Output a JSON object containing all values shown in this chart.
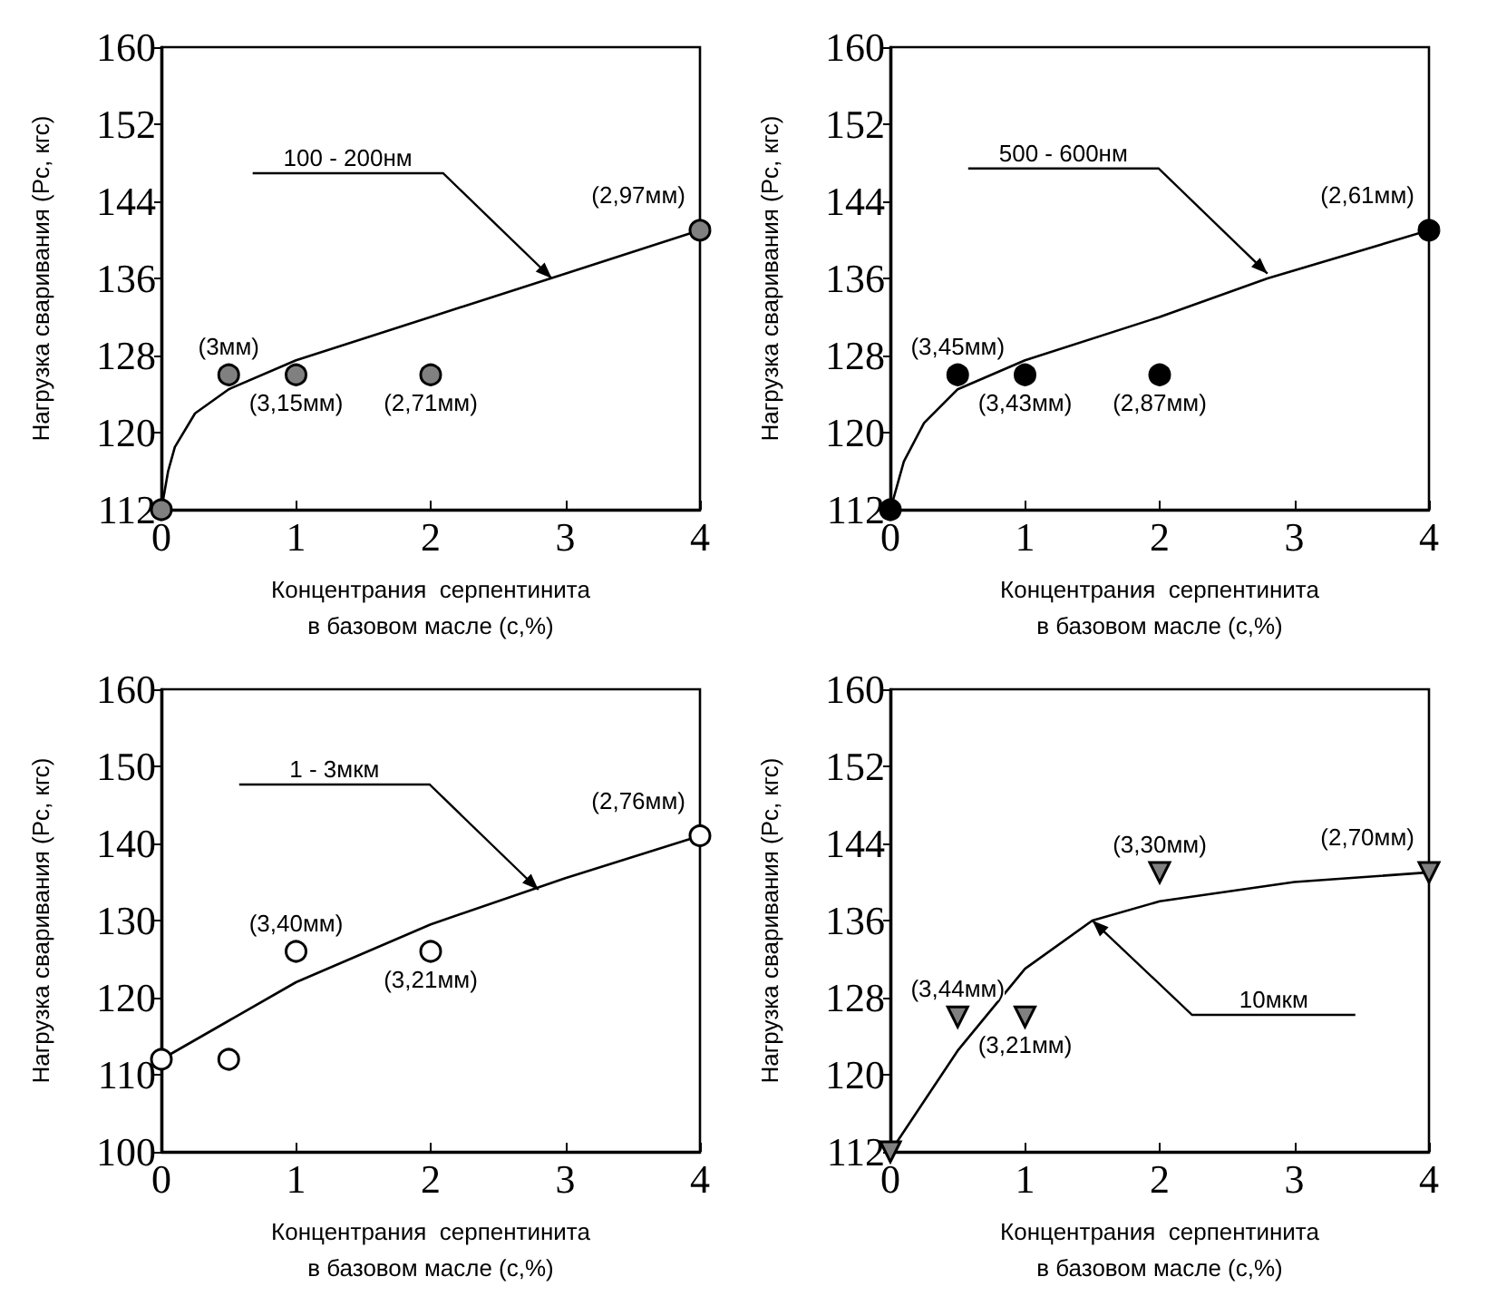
{
  "chart_data": [
    {
      "type": "scatter",
      "xlabel": "Концентрания  серпентинита\nв базовом масле (с,%)",
      "ylabel": "Нагрузка сваривания (Рс, кгс)",
      "xlim": [
        0,
        4
      ],
      "xticks": [
        0,
        1,
        2,
        3,
        4
      ],
      "ylim": [
        112,
        160
      ],
      "yticks": [
        112,
        120,
        128,
        136,
        144,
        152,
        160
      ],
      "series": [
        {
          "marker": "circle",
          "color": "#808080",
          "x": [
            0,
            0.5,
            1,
            2,
            4
          ],
          "values": [
            112,
            126,
            126,
            126,
            141
          ]
        },
        {
          "type": "line",
          "marker": "none",
          "line_style": "solid",
          "color": "#000000",
          "x": [
            0,
            0.05,
            0.1,
            0.25,
            0.5,
            1,
            2,
            3,
            4
          ],
          "values": [
            112,
            116,
            118.5,
            122,
            124.5,
            127.5,
            132,
            136.5,
            141
          ]
        }
      ],
      "annotations": [
        {
          "text": "(3мм)",
          "x": 0.5,
          "y": 126
        },
        {
          "text": "(3,15мм)",
          "x": 1,
          "y": 126
        },
        {
          "text": "(2,71мм)",
          "x": 2,
          "y": 126
        },
        {
          "text": "(2,97мм)",
          "x": 4,
          "y": 141
        },
        {
          "text": "100 - 200нм",
          "x": 2.9,
          "y": 136
        }
      ]
    },
    {
      "type": "scatter",
      "xlabel": "Концентрания  серпентинита\nв базовом масле (с,%)",
      "ylabel": "Нагрузка сваривания (Рс, кгс)",
      "xlim": [
        0,
        4
      ],
      "xticks": [
        0,
        1,
        2,
        3,
        4
      ],
      "ylim": [
        112,
        160
      ],
      "yticks": [
        112,
        120,
        128,
        136,
        144,
        152,
        160
      ],
      "series": [
        {
          "marker": "circle",
          "color": "#000000",
          "x": [
            0,
            0.5,
            1,
            2,
            4
          ],
          "values": [
            112,
            126,
            126,
            126,
            141
          ]
        },
        {
          "type": "line",
          "marker": "none",
          "line_style": "solid",
          "color": "#000000",
          "x": [
            0,
            0.1,
            0.25,
            0.5,
            1,
            2,
            2.8,
            4
          ],
          "values": [
            112,
            117,
            121,
            124.5,
            127.5,
            132,
            136,
            141
          ]
        }
      ],
      "annotations": [
        {
          "text": "(3,45мм)",
          "x": 0.5,
          "y": 126
        },
        {
          "text": "(3,43мм)",
          "x": 1,
          "y": 126
        },
        {
          "text": "(2,87мм)",
          "x": 2,
          "y": 126
        },
        {
          "text": "(2,61мм)",
          "x": 4,
          "y": 141
        },
        {
          "text": "500 - 600нм",
          "x": 2.8,
          "y": 136.5
        }
      ]
    },
    {
      "type": "scatter",
      "xlabel": "Концентрания  серпентинита\nв базовом масле (с,%)",
      "ylabel": "Нагрузка сваривания (Рс, кгс)",
      "xlim": [
        0,
        4
      ],
      "xticks": [
        0,
        1,
        2,
        3,
        4
      ],
      "ylim": [
        100,
        160
      ],
      "yticks": [
        100,
        110,
        120,
        130,
        140,
        150,
        160
      ],
      "series": [
        {
          "marker": "circle",
          "color": "#ffffff",
          "x": [
            0,
            0.5,
            1,
            2,
            4
          ],
          "values": [
            112,
            112,
            126,
            126,
            141
          ]
        },
        {
          "type": "line",
          "marker": "none",
          "line_style": "solid",
          "color": "#000000",
          "x": [
            0,
            0.5,
            1,
            2,
            3,
            4
          ],
          "values": [
            112,
            117,
            122,
            129.5,
            135.5,
            141
          ]
        }
      ],
      "annotations": [
        {
          "text": "(3,40мм)",
          "x": 1,
          "y": 126
        },
        {
          "text": "(3,21мм)",
          "x": 2,
          "y": 126
        },
        {
          "text": "(2,76мм)",
          "x": 4,
          "y": 141
        },
        {
          "text": "1 - 3мкм",
          "x": 2.8,
          "y": 134
        }
      ]
    },
    {
      "type": "scatter",
      "xlabel": "Концентрания  серпентинита\nв базовом масле (с,%)",
      "ylabel": "Нагрузка сваривания (Рс, кгс)",
      "xlim": [
        0,
        4
      ],
      "xticks": [
        0,
        1,
        2,
        3,
        4
      ],
      "ylim": [
        112,
        160
      ],
      "yticks": [
        112,
        120,
        128,
        136,
        144,
        152,
        160
      ],
      "series": [
        {
          "marker": "triangle",
          "color": "#808080",
          "x": [
            0,
            0.5,
            1,
            2,
            4
          ],
          "values": [
            112,
            126,
            126,
            141,
            141
          ]
        },
        {
          "type": "line",
          "marker": "none",
          "line_style": "solid",
          "color": "#000000",
          "x": [
            0,
            0.5,
            1,
            1.5,
            2,
            3,
            4
          ],
          "values": [
            112,
            122.5,
            131,
            136,
            138,
            140,
            141
          ]
        }
      ],
      "annotations": [
        {
          "text": "(3,44мм)",
          "x": 0.5,
          "y": 126
        },
        {
          "text": "(3,21мм)",
          "x": 1,
          "y": 126
        },
        {
          "text": "(3,30мм)",
          "x": 2,
          "y": 141
        },
        {
          "text": "(2,70мм)",
          "x": 4,
          "y": 141
        },
        {
          "text": "10мкм",
          "x": 1.5,
          "y": 136
        }
      ]
    }
  ]
}
